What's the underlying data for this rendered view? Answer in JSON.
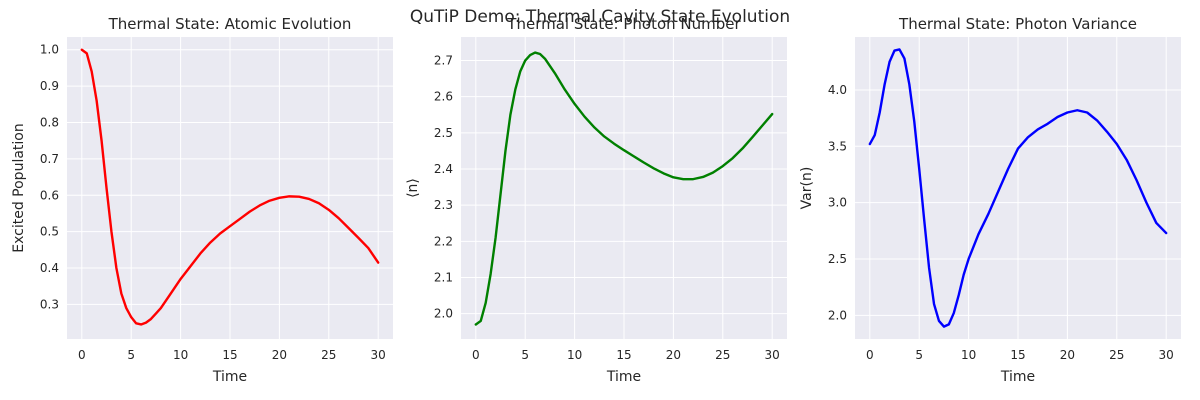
{
  "figure": {
    "suptitle": "QuTiP Demo: Thermal Cavity State Evolution",
    "background": "#EAEAF2",
    "grid_color": "#FFFFFF"
  },
  "chart_data": [
    {
      "type": "line",
      "title": "Thermal State: Atomic Evolution",
      "xlabel": "Time",
      "ylabel": "Excited Population",
      "xlim": [
        -1.5,
        31.5
      ],
      "ylim": [
        0.205,
        1.035
      ],
      "xticks": [
        0,
        5,
        10,
        15,
        20,
        25,
        30
      ],
      "yticks": [
        0.3,
        0.4,
        0.5,
        0.6,
        0.7,
        0.8,
        0.9,
        1.0
      ],
      "ytick_labels": [
        "0.3",
        "0.4",
        "0.5",
        "0.6",
        "0.7",
        "0.8",
        "0.9",
        "1.0"
      ],
      "grid": true,
      "series": [
        {
          "color": "#FF0000",
          "x": [
            0,
            0.5,
            1,
            1.5,
            2,
            2.5,
            3,
            3.5,
            4,
            4.5,
            5,
            5.5,
            6,
            6.5,
            7,
            7.5,
            8,
            9,
            10,
            11,
            12,
            13,
            14,
            15,
            16,
            17,
            18,
            19,
            20,
            21,
            22,
            23,
            24,
            25,
            26,
            27,
            28,
            29,
            30
          ],
          "y": [
            1.0,
            0.99,
            0.94,
            0.86,
            0.75,
            0.62,
            0.5,
            0.4,
            0.33,
            0.29,
            0.265,
            0.248,
            0.245,
            0.25,
            0.26,
            0.275,
            0.29,
            0.33,
            0.37,
            0.405,
            0.44,
            0.47,
            0.495,
            0.515,
            0.535,
            0.555,
            0.572,
            0.585,
            0.593,
            0.597,
            0.596,
            0.59,
            0.578,
            0.56,
            0.537,
            0.51,
            0.483,
            0.455,
            0.415
          ]
        }
      ]
    },
    {
      "type": "line",
      "title": "Thermal State: Photon Number",
      "xlabel": "Time",
      "ylabel": "⟨n⟩",
      "xlim": [
        -1.5,
        31.5
      ],
      "ylim": [
        1.93,
        2.765
      ],
      "xticks": [
        0,
        5,
        10,
        15,
        20,
        25,
        30
      ],
      "yticks": [
        2.0,
        2.1,
        2.2,
        2.3,
        2.4,
        2.5,
        2.6,
        2.7
      ],
      "ytick_labels": [
        "2.0",
        "2.1",
        "2.2",
        "2.3",
        "2.4",
        "2.5",
        "2.6",
        "2.7"
      ],
      "grid": true,
      "series": [
        {
          "color": "#008000",
          "x": [
            0,
            0.5,
            1,
            1.5,
            2,
            2.5,
            3,
            3.5,
            4,
            4.5,
            5,
            5.5,
            6,
            6.5,
            7,
            7.5,
            8,
            9,
            10,
            11,
            12,
            13,
            14,
            15,
            16,
            17,
            18,
            19,
            20,
            21,
            22,
            23,
            24,
            25,
            26,
            27,
            28,
            29,
            30
          ],
          "y": [
            1.97,
            1.98,
            2.03,
            2.11,
            2.21,
            2.33,
            2.45,
            2.55,
            2.62,
            2.67,
            2.7,
            2.715,
            2.722,
            2.718,
            2.705,
            2.685,
            2.665,
            2.62,
            2.58,
            2.545,
            2.515,
            2.49,
            2.47,
            2.452,
            2.435,
            2.418,
            2.402,
            2.388,
            2.377,
            2.372,
            2.372,
            2.378,
            2.39,
            2.408,
            2.43,
            2.457,
            2.488,
            2.52,
            2.552
          ]
        }
      ]
    },
    {
      "type": "line",
      "title": "Thermal State: Photon Variance",
      "xlabel": "Time",
      "ylabel": "Var(n)",
      "xlim": [
        -1.5,
        31.5
      ],
      "ylim": [
        1.79,
        4.47
      ],
      "xticks": [
        0,
        5,
        10,
        15,
        20,
        25,
        30
      ],
      "yticks": [
        2.0,
        2.5,
        3.0,
        3.5,
        4.0
      ],
      "ytick_labels": [
        "2.0",
        "2.5",
        "3.0",
        "3.5",
        "4.0"
      ],
      "grid": true,
      "series": [
        {
          "color": "#0000FF",
          "x": [
            0,
            0.5,
            1,
            1.5,
            2,
            2.5,
            3,
            3.5,
            4,
            4.5,
            5,
            5.5,
            6,
            6.5,
            7,
            7.5,
            8,
            8.5,
            9,
            9.5,
            10,
            11,
            12,
            13,
            14,
            15,
            16,
            17,
            18,
            19,
            20,
            21,
            22,
            23,
            24,
            25,
            26,
            27,
            28,
            29,
            30
          ],
          "y": [
            3.52,
            3.6,
            3.8,
            4.05,
            4.25,
            4.35,
            4.36,
            4.28,
            4.05,
            3.72,
            3.3,
            2.85,
            2.42,
            2.1,
            1.95,
            1.9,
            1.92,
            2.02,
            2.18,
            2.36,
            2.5,
            2.72,
            2.9,
            3.1,
            3.3,
            3.48,
            3.58,
            3.65,
            3.7,
            3.76,
            3.8,
            3.82,
            3.8,
            3.73,
            3.63,
            3.52,
            3.38,
            3.2,
            3.0,
            2.82,
            2.73
          ]
        }
      ]
    }
  ]
}
